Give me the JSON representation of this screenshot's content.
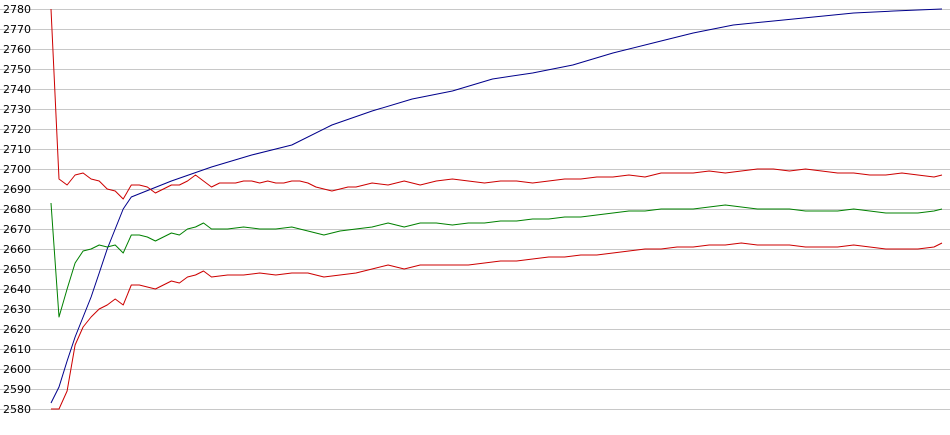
{
  "chart_data": {
    "type": "line",
    "title": "",
    "xlabel": "",
    "ylabel": "",
    "grid": true,
    "legend": "none",
    "ylim": [
      2580,
      2780
    ],
    "yticks": [
      2580,
      2590,
      2600,
      2610,
      2620,
      2630,
      2640,
      2650,
      2660,
      2670,
      2680,
      2690,
      2700,
      2710,
      2720,
      2730,
      2740,
      2750,
      2760,
      2770,
      2780
    ],
    "xlim": [
      0,
      111
    ],
    "series": [
      {
        "color": "#00008b",
        "x": [
          0,
          1,
          2,
          3,
          4,
          5,
          6,
          7,
          8,
          9,
          10,
          15,
          20,
          25,
          30,
          35,
          40,
          45,
          50,
          55,
          60,
          65,
          70,
          75,
          80,
          85,
          90,
          95,
          100,
          105,
          111
        ],
        "y": [
          2583,
          2591,
          2604,
          2616,
          2626,
          2636,
          2648,
          2660,
          2670,
          2680,
          2686,
          2694,
          2701,
          2707,
          2712,
          2722,
          2729,
          2735,
          2739,
          2745,
          2748,
          2752,
          2758,
          2763,
          2768,
          2772,
          2774,
          2776,
          2778,
          2779,
          2780
        ]
      },
      {
        "color": "#cc0000",
        "x": [
          0,
          1,
          2,
          3,
          4,
          5,
          6,
          7,
          8,
          9,
          10,
          11,
          12,
          13,
          14,
          15,
          16,
          17,
          18,
          19,
          20,
          21,
          22,
          23,
          24,
          25,
          26,
          27,
          28,
          29,
          30,
          31,
          32,
          33,
          34,
          35,
          36,
          37,
          38,
          39,
          40,
          42,
          44,
          46,
          48,
          50,
          52,
          54,
          56,
          58,
          60,
          62,
          64,
          66,
          68,
          70,
          72,
          74,
          76,
          78,
          80,
          82,
          84,
          86,
          88,
          90,
          92,
          94,
          96,
          98,
          100,
          102,
          104,
          106,
          108,
          110,
          111
        ],
        "y": [
          2780,
          2695,
          2692,
          2697,
          2698,
          2695,
          2694,
          2690,
          2689,
          2685,
          2692,
          2692,
          2691,
          2688,
          2690,
          2692,
          2692,
          2694,
          2697,
          2694,
          2691,
          2693,
          2693,
          2693,
          2694,
          2694,
          2693,
          2694,
          2693,
          2693,
          2694,
          2694,
          2693,
          2691,
          2690,
          2689,
          2690,
          2691,
          2691,
          2692,
          2693,
          2692,
          2694,
          2692,
          2694,
          2695,
          2694,
          2693,
          2694,
          2694,
          2693,
          2694,
          2695,
          2695,
          2696,
          2696,
          2697,
          2696,
          2698,
          2698,
          2698,
          2699,
          2698,
          2699,
          2700,
          2700,
          2699,
          2700,
          2699,
          2698,
          2698,
          2697,
          2697,
          2698,
          2697,
          2696,
          2697
        ]
      },
      {
        "color": "#008000",
        "x": [
          0,
          1,
          2,
          3,
          4,
          5,
          6,
          7,
          8,
          9,
          10,
          11,
          12,
          13,
          14,
          15,
          16,
          17,
          18,
          19,
          20,
          22,
          24,
          26,
          28,
          30,
          32,
          34,
          36,
          38,
          40,
          42,
          44,
          46,
          48,
          50,
          52,
          54,
          56,
          58,
          60,
          62,
          64,
          66,
          68,
          70,
          72,
          74,
          76,
          78,
          80,
          82,
          84,
          86,
          88,
          90,
          92,
          94,
          96,
          98,
          100,
          102,
          104,
          106,
          108,
          110,
          111
        ],
        "y": [
          2683,
          2626,
          2640,
          2653,
          2659,
          2660,
          2662,
          2661,
          2662,
          2658,
          2667,
          2667,
          2666,
          2664,
          2666,
          2668,
          2667,
          2670,
          2671,
          2673,
          2670,
          2670,
          2671,
          2670,
          2670,
          2671,
          2669,
          2667,
          2669,
          2670,
          2671,
          2673,
          2671,
          2673,
          2673,
          2672,
          2673,
          2673,
          2674,
          2674,
          2675,
          2675,
          2676,
          2676,
          2677,
          2678,
          2679,
          2679,
          2680,
          2680,
          2680,
          2681,
          2682,
          2681,
          2680,
          2680,
          2680,
          2679,
          2679,
          2679,
          2680,
          2679,
          2678,
          2678,
          2678,
          2679,
          2680
        ]
      },
      {
        "color": "#cc0000",
        "x": [
          0,
          1,
          2,
          3,
          4,
          5,
          6,
          7,
          8,
          9,
          10,
          11,
          12,
          13,
          14,
          15,
          16,
          17,
          18,
          19,
          20,
          22,
          24,
          26,
          28,
          30,
          32,
          34,
          36,
          38,
          40,
          42,
          44,
          46,
          48,
          50,
          52,
          54,
          56,
          58,
          60,
          62,
          64,
          66,
          68,
          70,
          72,
          74,
          76,
          78,
          80,
          82,
          84,
          86,
          88,
          90,
          92,
          94,
          96,
          98,
          100,
          102,
          104,
          106,
          108,
          110,
          111
        ],
        "y": [
          2580,
          2580,
          2589,
          2612,
          2621,
          2626,
          2630,
          2632,
          2635,
          2632,
          2642,
          2642,
          2641,
          2640,
          2642,
          2644,
          2643,
          2646,
          2647,
          2649,
          2646,
          2647,
          2647,
          2648,
          2647,
          2648,
          2648,
          2646,
          2647,
          2648,
          2650,
          2652,
          2650,
          2652,
          2652,
          2652,
          2652,
          2653,
          2654,
          2654,
          2655,
          2656,
          2656,
          2657,
          2657,
          2658,
          2659,
          2660,
          2660,
          2661,
          2661,
          2662,
          2662,
          2663,
          2662,
          2662,
          2662,
          2661,
          2661,
          2661,
          2662,
          2661,
          2660,
          2660,
          2660,
          2661,
          2663
        ]
      }
    ]
  }
}
